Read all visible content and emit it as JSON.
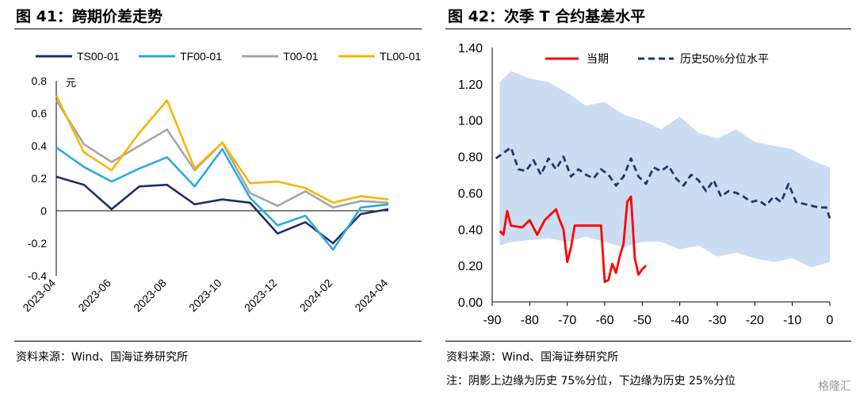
{
  "left": {
    "title": "图 41：跨期价差走势",
    "source": "资料来源：Wind、国海证券研究所"
  },
  "right": {
    "title": "图 42：次季 T 合约基差水平",
    "source": "资料来源：Wind、国海证券研究所",
    "note": "注：阴影上边缘为历史 75%分位，下边缘为历史 25%分位"
  },
  "watermark": "格隆汇",
  "chart_data": [
    {
      "type": "line",
      "ylabel": "元",
      "ylim": [
        -0.4,
        0.8
      ],
      "yticks": [
        -0.4,
        -0.2,
        0,
        0.2,
        0.4,
        0.6,
        0.8
      ],
      "x_range": [
        "2023-04",
        "2024-04"
      ],
      "xticks": [
        "2023-04",
        "2023-06",
        "2023-08",
        "2023-10",
        "2023-12",
        "2024-02",
        "2024-04"
      ],
      "legend_position": "top",
      "x": [
        "2023-04",
        "2023-05",
        "2023-06",
        "2023-07",
        "2023-08",
        "2023-09",
        "2023-10",
        "2023-11",
        "2023-12",
        "2024-01",
        "2024-02",
        "2024-03",
        "2024-04"
      ],
      "series": [
        {
          "name": "TS00-01",
          "color": "#1f2d6b",
          "values": [
            0.21,
            0.16,
            0.01,
            0.15,
            0.16,
            0.04,
            0.07,
            0.05,
            -0.14,
            -0.07,
            -0.2,
            -0.02,
            0.01
          ]
        },
        {
          "name": "TF00-01",
          "color": "#29abe2",
          "values": [
            0.39,
            0.27,
            0.18,
            0.26,
            0.33,
            0.15,
            0.38,
            0.08,
            -0.09,
            -0.03,
            -0.24,
            0.02,
            0.04
          ]
        },
        {
          "name": "T00-01",
          "color": "#a6a6a6",
          "values": [
            0.68,
            0.41,
            0.3,
            0.4,
            0.5,
            0.25,
            0.42,
            0.11,
            0.03,
            0.12,
            0.02,
            0.06,
            0.05
          ]
        },
        {
          "name": "TL00-01",
          "color": "#f5b700",
          "values": [
            0.71,
            0.36,
            0.25,
            0.48,
            0.68,
            0.26,
            0.42,
            0.17,
            0.18,
            0.14,
            0.05,
            0.09,
            0.07
          ]
        }
      ]
    },
    {
      "type": "line",
      "ylim": [
        0,
        1.4
      ],
      "yticks": [
        "0.00",
        "0.20",
        "0.40",
        "0.60",
        "0.80",
        "1.00",
        "1.20",
        "1.40"
      ],
      "xlim": [
        -90,
        0
      ],
      "xticks": [
        -90,
        -80,
        -70,
        -60,
        -50,
        -40,
        -30,
        -20,
        -10,
        0
      ],
      "legend_position": "top",
      "series": [
        {
          "name": "当期",
          "color": "#ff0000",
          "x": [
            -88,
            -87,
            -86,
            -85,
            -82,
            -80,
            -78,
            -76,
            -75,
            -73,
            -72,
            -71,
            -70,
            -69,
            -68,
            -66,
            -64,
            -63,
            -62,
            -61,
            -60,
            -59,
            -58,
            -57,
            -56,
            -55,
            -54,
            -53,
            -52,
            -51,
            -50,
            -49
          ],
          "values": [
            0.39,
            0.37,
            0.5,
            0.42,
            0.41,
            0.45,
            0.37,
            0.45,
            0.47,
            0.51,
            0.45,
            0.4,
            0.22,
            0.3,
            0.42,
            0.42,
            0.42,
            0.42,
            0.42,
            0.42,
            0.11,
            0.12,
            0.21,
            0.16,
            0.25,
            0.32,
            0.55,
            0.58,
            0.24,
            0.15,
            0.18,
            0.2
          ]
        },
        {
          "name": "历史50%分位水平",
          "color": "#1f3864",
          "x": [
            -89,
            -87,
            -85,
            -83,
            -81,
            -79,
            -77,
            -75,
            -73,
            -71,
            -69,
            -67,
            -65,
            -63,
            -61,
            -59,
            -57,
            -55,
            -53,
            -51,
            -49,
            -47,
            -45,
            -43,
            -41,
            -39,
            -37,
            -35,
            -33,
            -31,
            -29,
            -27,
            -25,
            -23,
            -21,
            -19,
            -17,
            -15,
            -13,
            -11,
            -9,
            -7,
            -5,
            -3,
            -1,
            0
          ],
          "values": [
            0.79,
            0.82,
            0.85,
            0.73,
            0.72,
            0.78,
            0.7,
            0.79,
            0.73,
            0.8,
            0.69,
            0.73,
            0.7,
            0.68,
            0.73,
            0.7,
            0.64,
            0.69,
            0.79,
            0.69,
            0.65,
            0.74,
            0.72,
            0.75,
            0.68,
            0.64,
            0.7,
            0.67,
            0.61,
            0.67,
            0.58,
            0.61,
            0.6,
            0.58,
            0.55,
            0.56,
            0.53,
            0.58,
            0.55,
            0.65,
            0.55,
            0.54,
            0.53,
            0.52,
            0.52,
            0.46
          ]
        },
        {
          "name": "历史75%分位",
          "color": "#c5d9f1",
          "x": [
            -88,
            -85,
            -80,
            -75,
            -70,
            -65,
            -60,
            -55,
            -50,
            -45,
            -40,
            -35,
            -30,
            -25,
            -20,
            -15,
            -10,
            -5,
            0
          ],
          "values": [
            1.21,
            1.27,
            1.23,
            1.21,
            1.15,
            1.08,
            1.1,
            1.03,
            1.0,
            0.95,
            1.02,
            0.93,
            0.9,
            0.95,
            0.88,
            0.86,
            0.84,
            0.78,
            0.74
          ]
        },
        {
          "name": "历史25%分位",
          "color": "#c5d9f1",
          "x": [
            -88,
            -85,
            -80,
            -75,
            -70,
            -65,
            -60,
            -55,
            -50,
            -45,
            -40,
            -35,
            -30,
            -25,
            -20,
            -15,
            -10,
            -5,
            0
          ],
          "values": [
            0.31,
            0.33,
            0.34,
            0.35,
            0.33,
            0.36,
            0.33,
            0.3,
            0.33,
            0.33,
            0.29,
            0.31,
            0.25,
            0.27,
            0.24,
            0.22,
            0.24,
            0.19,
            0.22
          ]
        }
      ]
    }
  ]
}
